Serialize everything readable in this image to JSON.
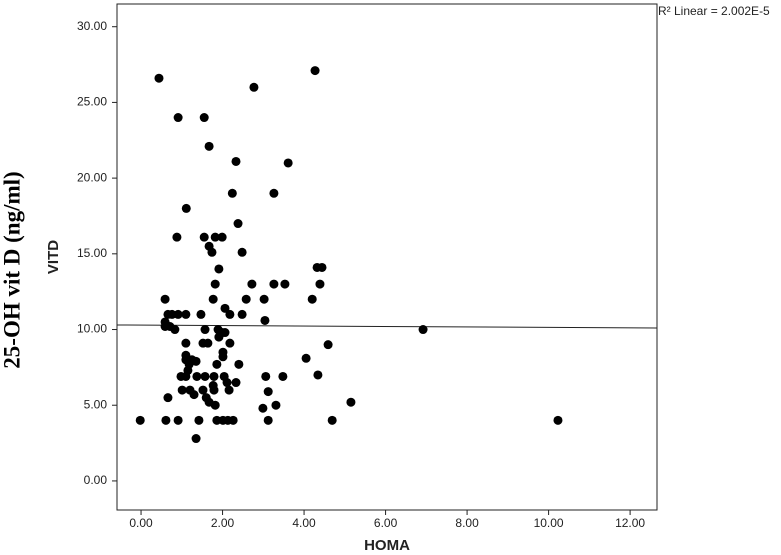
{
  "chart_data": {
    "type": "scatter",
    "y_label_outer": "25-OH vit D (ng/ml)",
    "y_label": "VITD",
    "x_label": "HOMA",
    "annotation": "R² Linear = 2.002E-5",
    "color": "#000000",
    "xlim": [
      -0.59,
      12.66
    ],
    "ylim": [
      -1.92,
      31.5
    ],
    "xticks": [
      {
        "value": 0,
        "label": "0.00"
      },
      {
        "value": 2,
        "label": "2.00"
      },
      {
        "value": 4,
        "label": "4.00"
      },
      {
        "value": 6,
        "label": "6.00"
      },
      {
        "value": 8,
        "label": "8.00"
      },
      {
        "value": 10,
        "label": "10.00"
      },
      {
        "value": 12,
        "label": "12.00"
      }
    ],
    "yticks": [
      {
        "value": 0,
        "label": "0.00"
      },
      {
        "value": 5,
        "label": "5.00"
      },
      {
        "value": 10,
        "label": "10.00"
      },
      {
        "value": 15,
        "label": "15.00"
      },
      {
        "value": 20,
        "label": "20.00"
      },
      {
        "value": 25,
        "label": "25.00"
      },
      {
        "value": 30,
        "label": "30.00"
      }
    ],
    "fit_line": {
      "x": [
        -0.59,
        12.66
      ],
      "y": [
        10.3,
        10.1
      ]
    },
    "x": [
      0.44,
      4.27,
      2.77,
      0.91,
      1.55,
      1.67,
      2.33,
      3.61,
      1.11,
      2.24,
      3.26,
      2.38,
      0.88,
      1.55,
      1.82,
      1.99,
      1.67,
      1.74,
      2.48,
      1.91,
      4.32,
      4.44,
      2.72,
      1.82,
      3.26,
      3.53,
      4.39,
      0.59,
      1.77,
      2.58,
      3.02,
      4.2,
      2.06,
      0.66,
      0.76,
      0.91,
      1.1,
      1.47,
      2.18,
      2.48,
      3.04,
      0.59,
      0.59,
      0.71,
      0.83,
      1.57,
      1.89,
      1.99,
      2.06,
      1.91,
      1.1,
      1.52,
      1.64,
      2.18,
      4.59,
      1.1,
      2.01,
      6.92,
      1.1,
      1.25,
      2.01,
      4.05,
      1.18,
      1.35,
      1.86,
      2.4,
      1.15,
      0.98,
      1.1,
      1.37,
      1.57,
      1.79,
      2.04,
      3.06,
      3.48,
      4.34,
      2.33,
      1.77,
      2.11,
      1.01,
      1.2,
      1.52,
      1.79,
      2.16,
      3.12,
      0.66,
      1.3,
      1.6,
      1.67,
      1.82,
      5.15,
      3.31,
      2.99,
      -0.02,
      0.61,
      0.91,
      1.42,
      1.86,
      2.01,
      2.13,
      2.26,
      3.12,
      4.69,
      10.23,
      1.35
    ],
    "values": [
      26.6,
      27.1,
      26.0,
      24.0,
      24.0,
      22.1,
      21.1,
      21.0,
      18.0,
      19.0,
      19.0,
      17.0,
      16.1,
      16.1,
      16.1,
      16.1,
      15.5,
      15.1,
      15.1,
      14.0,
      14.1,
      14.1,
      13.0,
      13.0,
      13.0,
      13.0,
      13.0,
      12.0,
      12.0,
      12.0,
      12.0,
      12.0,
      11.4,
      11.0,
      11.0,
      11.0,
      11.0,
      11.0,
      11.0,
      11.0,
      10.6,
      10.5,
      10.2,
      10.2,
      10.0,
      10.0,
      10.0,
      9.8,
      9.8,
      9.5,
      9.1,
      9.1,
      9.1,
      9.1,
      9.0,
      8.3,
      8.5,
      10.0,
      8.0,
      8.0,
      8.2,
      8.1,
      7.7,
      7.9,
      7.7,
      7.7,
      7.3,
      6.9,
      6.9,
      6.9,
      6.9,
      6.9,
      6.9,
      6.9,
      6.9,
      7.0,
      6.5,
      6.3,
      6.5,
      6.0,
      6.0,
      6.0,
      6.0,
      6.0,
      5.9,
      5.5,
      5.7,
      5.5,
      5.2,
      5.0,
      5.2,
      5.0,
      4.8,
      4.0,
      4.0,
      4.0,
      4.0,
      4.0,
      4.0,
      4.0,
      4.0,
      4.0,
      4.0,
      4.0,
      2.8
    ]
  }
}
